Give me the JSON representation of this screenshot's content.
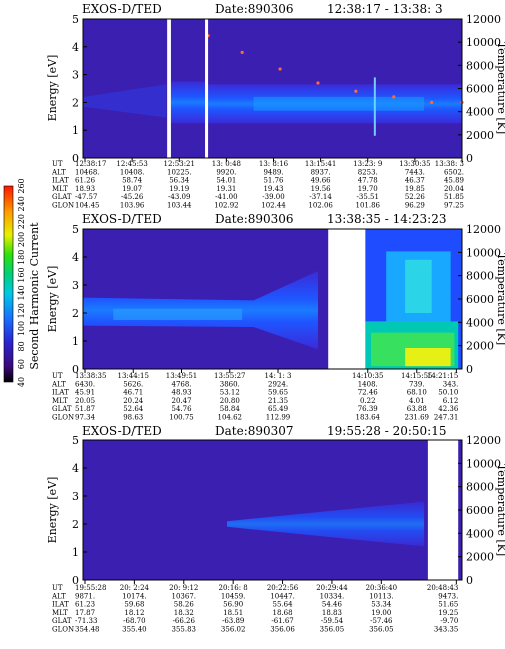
{
  "chart_data": [
    {
      "type": "heatmap",
      "title_name": "EXOS-D/TED",
      "title_date": "Date:890306",
      "title_time": "12:38:17 - 13:38: 3",
      "ylabel": "Energy [eV]",
      "y2label": "Temperature [K]",
      "ylim": [
        0,
        5
      ],
      "y2lim": [
        0,
        12000
      ],
      "yticks": [
        "0",
        "1",
        "2",
        "3",
        "4",
        "5"
      ],
      "y2ticks": [
        "0",
        "2000",
        "4000",
        "6000",
        "8000",
        "10000",
        "12000"
      ],
      "gaps": [
        [
          0.222,
          0.232
        ],
        [
          0.322,
          0.33
        ]
      ],
      "band_center_eV": 2.0,
      "temperature_trace": [
        [
          0.33,
          4.4
        ],
        [
          0.42,
          3.8
        ],
        [
          0.52,
          3.2
        ],
        [
          0.62,
          2.7
        ],
        [
          0.72,
          2.4
        ],
        [
          0.82,
          2.2
        ],
        [
          0.92,
          2.0
        ],
        [
          1.0,
          2.0
        ]
      ],
      "orbit_table": {
        "row_labels": [
          "UT",
          "ALT",
          "ILAT",
          "MLT",
          "GLAT",
          "GLON"
        ],
        "columns": [
          [
            "12:38:17",
            "10468.",
            "61.26",
            "18.93",
            "-47.57",
            "104.45"
          ],
          [
            "12:45:53",
            "10408.",
            "58.74",
            "19.07",
            "-45.26",
            "103.96"
          ],
          [
            "12:53:21",
            "10225.",
            "56.34",
            "19.19",
            "-43.09",
            "103.44"
          ],
          [
            "13: 0:48",
            "9920.",
            "54.01",
            "19.31",
            "-41.00",
            "102.92"
          ],
          [
            "13: 8:16",
            "9489.",
            "51.76",
            "19.43",
            "-39.00",
            "102.44"
          ],
          [
            "13:15:41",
            "8937.",
            "49.66",
            "19.56",
            "-37.14",
            "102.06"
          ],
          [
            "13:23: 9",
            "8253.",
            "47.78",
            "19.70",
            "-35.51",
            "101.86"
          ],
          [
            "13:30:35",
            "7443.",
            "46.37",
            "19.85",
            "52.26",
            "96.29"
          ],
          [
            "13:38: 3",
            "6502.",
            "45.89",
            "20.04",
            "51.85",
            "97.25"
          ]
        ]
      }
    },
    {
      "type": "heatmap",
      "title_name": "EXOS-D/TED",
      "title_date": "Date:890306",
      "title_time": "13:38:35 - 14:23:23",
      "ylabel": "Energy [eV]",
      "y2label": "Temperature [K]",
      "ylim": [
        0,
        5
      ],
      "y2lim": [
        0,
        12000
      ],
      "yticks": [
        "0",
        "1",
        "2",
        "3",
        "4",
        "5"
      ],
      "y2ticks": [
        "0",
        "2000",
        "4000",
        "6000",
        "8000",
        "10000",
        "12000"
      ],
      "gaps": [
        [
          0.647,
          0.745
        ]
      ],
      "band_center_eV": 2.0,
      "colorbar": {
        "label": "Second Harmonic Current",
        "ticks": [
          "40",
          "60",
          "80",
          "100",
          "120",
          "140",
          "160",
          "180",
          "200",
          "220",
          "240",
          "260"
        ]
      },
      "orbit_table": {
        "row_labels": [
          "UT",
          "ALT",
          "ILAT",
          "MLT",
          "GLAT",
          "GLON"
        ],
        "columns": [
          [
            "13:38:35",
            "6430.",
            "45.91",
            "20.05",
            "51.87",
            "97.34"
          ],
          [
            "13:44:15",
            "5626.",
            "46.71",
            "20.24",
            "52.64",
            "98.63"
          ],
          [
            "13:49:51",
            "4768.",
            "48.93",
            "20.47",
            "54.76",
            "100.75"
          ],
          [
            "13:55:27",
            "3860.",
            "53.12",
            "20.80",
            "58.84",
            "104.62"
          ],
          [
            "14: 1: 3",
            "2924.",
            "59.65",
            "21.35",
            "65.49",
            "112.99"
          ],
          [
            "14:10:35",
            "1408.",
            "72.46",
            "0.22",
            "76.39",
            "183.64"
          ],
          [
            "14:15:55",
            "739.",
            "68.10",
            "4.01",
            "63.88",
            "231.69"
          ],
          [
            "14:21:15",
            "343.",
            "50.10",
            "6.12",
            "42.36",
            "247.31"
          ]
        ]
      }
    },
    {
      "type": "heatmap",
      "title_name": "EXOS-D/TED",
      "title_date": "Date:890307",
      "title_time": "19:55:28 - 20:50:15",
      "ylabel": "Energy [eV]",
      "y2label": "Temperature [K]",
      "ylim": [
        0,
        5
      ],
      "y2lim": [
        0,
        12000
      ],
      "yticks": [
        "0",
        "1",
        "2",
        "3",
        "4",
        "5"
      ],
      "y2ticks": [
        "0",
        "2000",
        "4000",
        "6000",
        "8000",
        "10000",
        "12000"
      ],
      "gaps": [
        [
          0.91,
          0.99
        ]
      ],
      "band_center_eV": 2.0,
      "orbit_table": {
        "row_labels": [
          "UT",
          "ALT",
          "ILAT",
          "MLT",
          "GLAT",
          "GLON"
        ],
        "columns": [
          [
            "19:55:28",
            "9871.",
            "61.23",
            "17.87",
            "-71.33",
            "354.48"
          ],
          [
            "20: 2:24",
            "10174.",
            "59.68",
            "18.12",
            "-68.70",
            "355.40"
          ],
          [
            "20: 9:12",
            "10367.",
            "58.26",
            "18.32",
            "-66.26",
            "355.83"
          ],
          [
            "20:16: 8",
            "10459.",
            "56.90",
            "18.51",
            "-63.89",
            "356.02"
          ],
          [
            "20:22:56",
            "10447.",
            "55.64",
            "18.68",
            "-61.67",
            "356.06"
          ],
          [
            "20:29:44",
            "10334.",
            "54.46",
            "18.83",
            "-59.54",
            "356.05"
          ],
          [
            "20:36:40",
            "10113.",
            "53.34",
            "19.00",
            "-57.46",
            "356.05"
          ],
          [
            "20:48:43",
            "9473.",
            "51.65",
            "19.25",
            "-9.70",
            "343.35"
          ]
        ]
      }
    }
  ]
}
